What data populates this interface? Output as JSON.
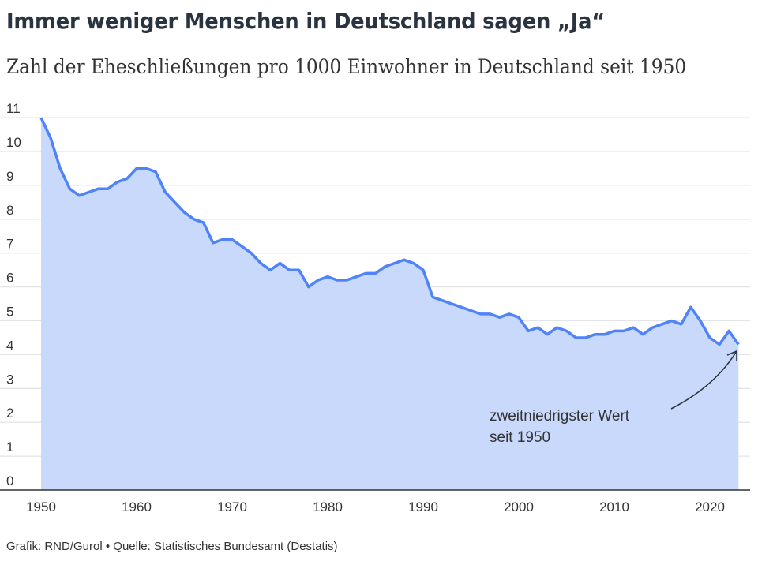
{
  "chart_data": {
    "type": "area",
    "title": "Immer weniger Menschen in Deutschland sagen „Ja“",
    "subtitle": "Zahl der Eheschließungen pro 1000 Einwohner in Deutschland seit 1950",
    "xlabel": "",
    "ylabel": "",
    "xlim": [
      1950,
      2023
    ],
    "ylim": [
      0,
      11
    ],
    "grid": true,
    "x_ticks": [
      "1950",
      "1960",
      "1970",
      "1980",
      "1990",
      "2000",
      "2010",
      "2020"
    ],
    "y_ticks": [
      "0",
      "1",
      "2",
      "3",
      "4",
      "5",
      "6",
      "7",
      "8",
      "9",
      "10",
      "11"
    ],
    "x": [
      1950,
      1951,
      1952,
      1953,
      1954,
      1955,
      1956,
      1957,
      1958,
      1959,
      1960,
      1961,
      1962,
      1963,
      1964,
      1965,
      1966,
      1967,
      1968,
      1969,
      1970,
      1971,
      1972,
      1973,
      1974,
      1975,
      1976,
      1977,
      1978,
      1979,
      1980,
      1981,
      1982,
      1983,
      1984,
      1985,
      1986,
      1987,
      1988,
      1989,
      1990,
      1991,
      1992,
      1993,
      1994,
      1995,
      1996,
      1997,
      1998,
      1999,
      2000,
      2001,
      2002,
      2003,
      2004,
      2005,
      2006,
      2007,
      2008,
      2009,
      2010,
      2011,
      2012,
      2013,
      2014,
      2015,
      2016,
      2017,
      2018,
      2019,
      2020,
      2021,
      2022,
      2023
    ],
    "values": [
      11.0,
      10.4,
      9.5,
      8.9,
      8.7,
      8.8,
      8.9,
      8.9,
      9.1,
      9.2,
      9.5,
      9.5,
      9.4,
      8.8,
      8.5,
      8.2,
      8.0,
      7.9,
      7.3,
      7.4,
      7.4,
      7.2,
      7.0,
      6.7,
      6.5,
      6.7,
      6.5,
      6.5,
      6.0,
      6.2,
      6.3,
      6.2,
      6.2,
      6.3,
      6.4,
      6.4,
      6.6,
      6.7,
      6.8,
      6.7,
      6.5,
      5.7,
      5.6,
      5.5,
      5.4,
      5.3,
      5.2,
      5.2,
      5.1,
      5.2,
      5.1,
      4.7,
      4.8,
      4.6,
      4.8,
      4.7,
      4.5,
      4.5,
      4.6,
      4.6,
      4.7,
      4.7,
      4.8,
      4.6,
      4.8,
      4.9,
      5.0,
      4.9,
      5.4,
      5.0,
      4.5,
      4.3,
      4.7,
      4.3
    ],
    "annotation": {
      "line1": "zweitniedrigster Wert",
      "line2": "seit 1950"
    },
    "colors": {
      "line": "#4f83f7",
      "fill": "#c8d9fc",
      "grid": "#e2e4e8",
      "axis": "#333333"
    }
  },
  "footer": "Grafik: RND/Gurol • Quelle: Statistisches Bundesamt (Destatis)"
}
